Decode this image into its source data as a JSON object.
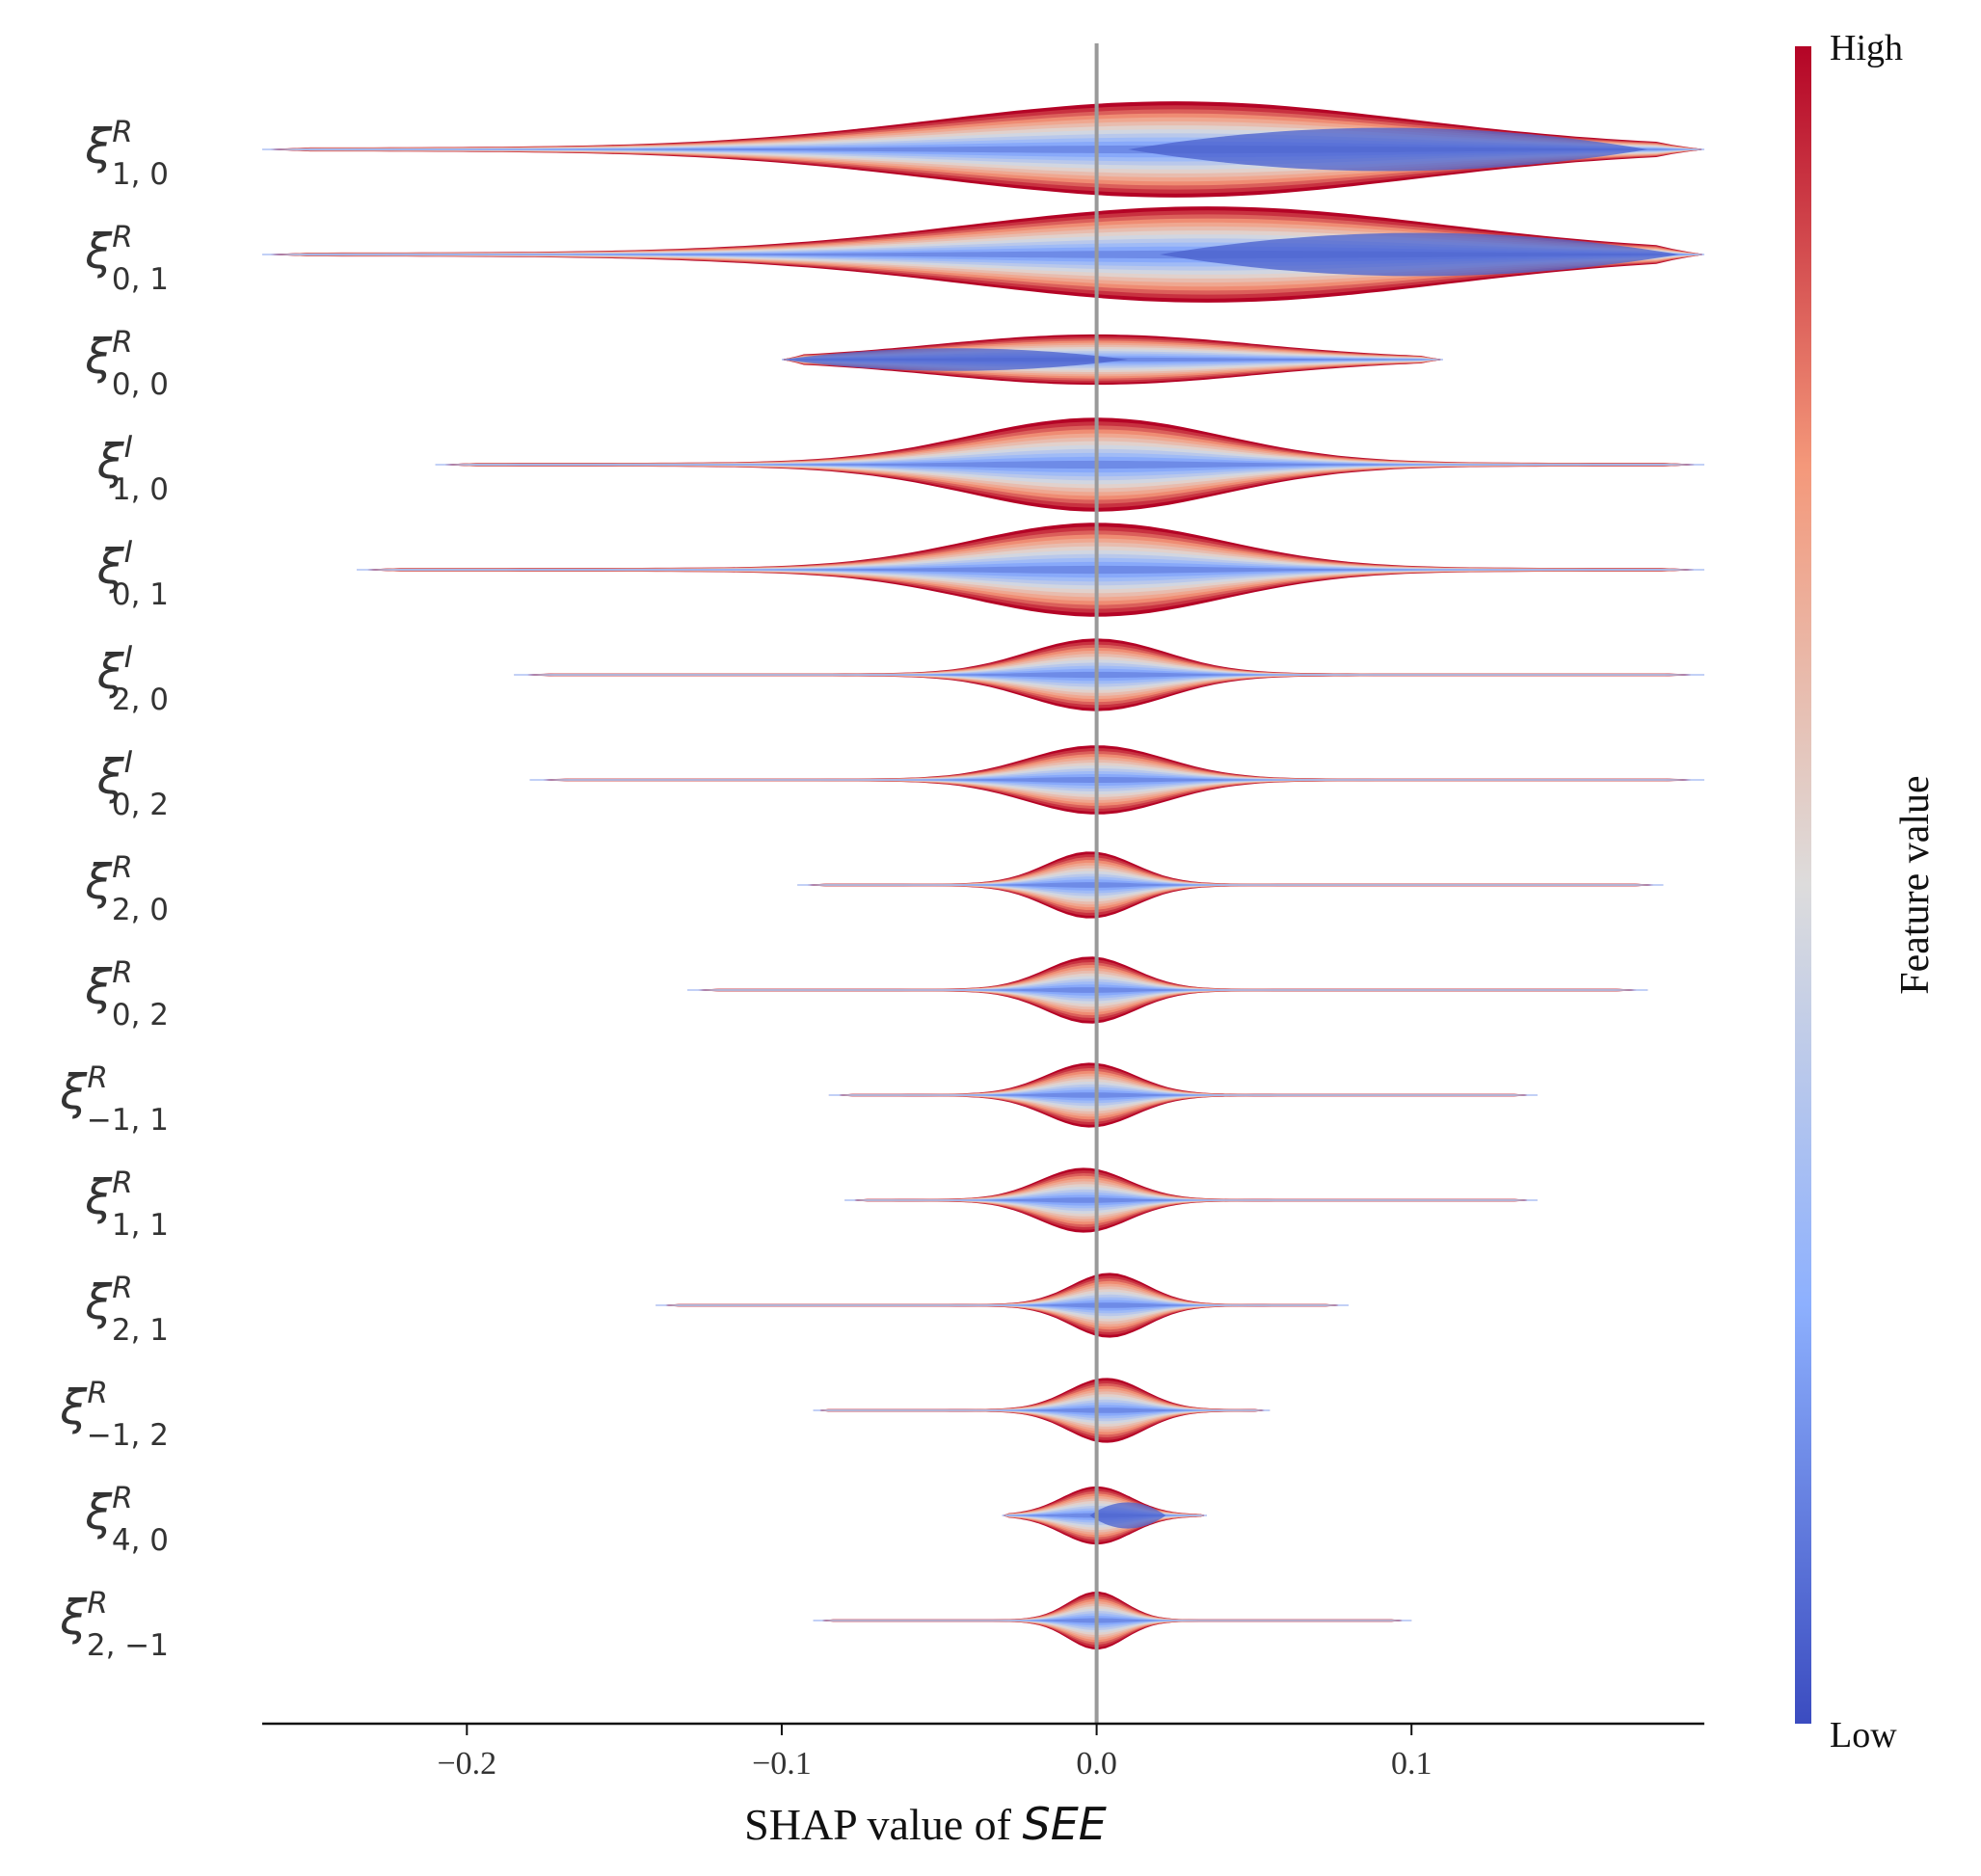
{
  "chart_data": {
    "type": "violin",
    "xlabel_prefix": "SHAP value of ",
    "xlabel_var": "SEE",
    "xlim": [
      -0.265,
      0.193
    ],
    "xticks": [
      {
        "value": -0.2,
        "label": "−0.2"
      },
      {
        "value": -0.1,
        "label": "−0.1"
      },
      {
        "value": 0.0,
        "label": "0.0"
      },
      {
        "value": 0.1,
        "label": "0.1"
      }
    ],
    "colorbar": {
      "title": "Feature value",
      "high_label": "High",
      "low_label": "Low"
    },
    "features": [
      {
        "base": "ξ",
        "sup": "R",
        "sub": "1, 0",
        "min": -0.265,
        "max": 0.193,
        "mode": 0.025,
        "width": 0.86,
        "spread": 0.075,
        "low_side": "right"
      },
      {
        "base": "ξ",
        "sup": "R",
        "sub": "0, 1",
        "min": -0.265,
        "max": 0.193,
        "mode": 0.035,
        "width": 0.86,
        "spread": 0.075,
        "low_side": "right"
      },
      {
        "base": "ξ",
        "sup": "R",
        "sub": "0, 0",
        "min": -0.1,
        "max": 0.11,
        "mode": 0.0,
        "width": 0.45,
        "spread": 0.05,
        "low_side": "left"
      },
      {
        "base": "ξ",
        "sup": "I",
        "sub": "1, 0",
        "min": -0.21,
        "max": 0.193,
        "mode": 0.0,
        "width": 0.84,
        "spread": 0.04,
        "low_side": "none"
      },
      {
        "base": "ξ",
        "sup": "I",
        "sub": "0, 1",
        "min": -0.235,
        "max": 0.193,
        "mode": 0.0,
        "width": 0.84,
        "spread": 0.04,
        "low_side": "none"
      },
      {
        "base": "ξ",
        "sup": "I",
        "sub": "2, 0",
        "min": -0.185,
        "max": 0.193,
        "mode": 0.0,
        "width": 0.65,
        "spread": 0.022,
        "low_side": "none"
      },
      {
        "base": "ξ",
        "sup": "I",
        "sub": "0, 2",
        "min": -0.18,
        "max": 0.193,
        "mode": 0.0,
        "width": 0.62,
        "spread": 0.022,
        "low_side": "none"
      },
      {
        "base": "ξ",
        "sup": "R",
        "sub": "2, 0",
        "min": -0.095,
        "max": 0.18,
        "mode": -0.002,
        "width": 0.6,
        "spread": 0.014,
        "low_side": "none"
      },
      {
        "base": "ξ",
        "sup": "R",
        "sub": "0, 2",
        "min": -0.13,
        "max": 0.175,
        "mode": -0.002,
        "width": 0.6,
        "spread": 0.014,
        "low_side": "none"
      },
      {
        "base": "ξ",
        "sup": "R",
        "sub": "−1, 1",
        "min": -0.085,
        "max": 0.14,
        "mode": -0.002,
        "width": 0.58,
        "spread": 0.014,
        "low_side": "none"
      },
      {
        "base": "ξ",
        "sup": "R",
        "sub": "1, 1",
        "min": -0.08,
        "max": 0.14,
        "mode": -0.004,
        "width": 0.58,
        "spread": 0.014,
        "low_side": "none"
      },
      {
        "base": "ξ",
        "sup": "R",
        "sub": "2, 1",
        "min": -0.14,
        "max": 0.08,
        "mode": 0.004,
        "width": 0.58,
        "spread": 0.012,
        "low_side": "none"
      },
      {
        "base": "ξ",
        "sup": "R",
        "sub": "−1, 2",
        "min": -0.09,
        "max": 0.055,
        "mode": 0.003,
        "width": 0.58,
        "spread": 0.012,
        "low_side": "none"
      },
      {
        "base": "ξ",
        "sup": "R",
        "sub": "4, 0",
        "min": -0.03,
        "max": 0.035,
        "mode": 0.0,
        "width": 0.52,
        "spread": 0.011,
        "low_side": "right"
      },
      {
        "base": "ξ",
        "sup": "R",
        "sub": "2, −1",
        "min": -0.09,
        "max": 0.1,
        "mode": 0.0,
        "width": 0.52,
        "spread": 0.009,
        "low_side": "none"
      }
    ]
  }
}
